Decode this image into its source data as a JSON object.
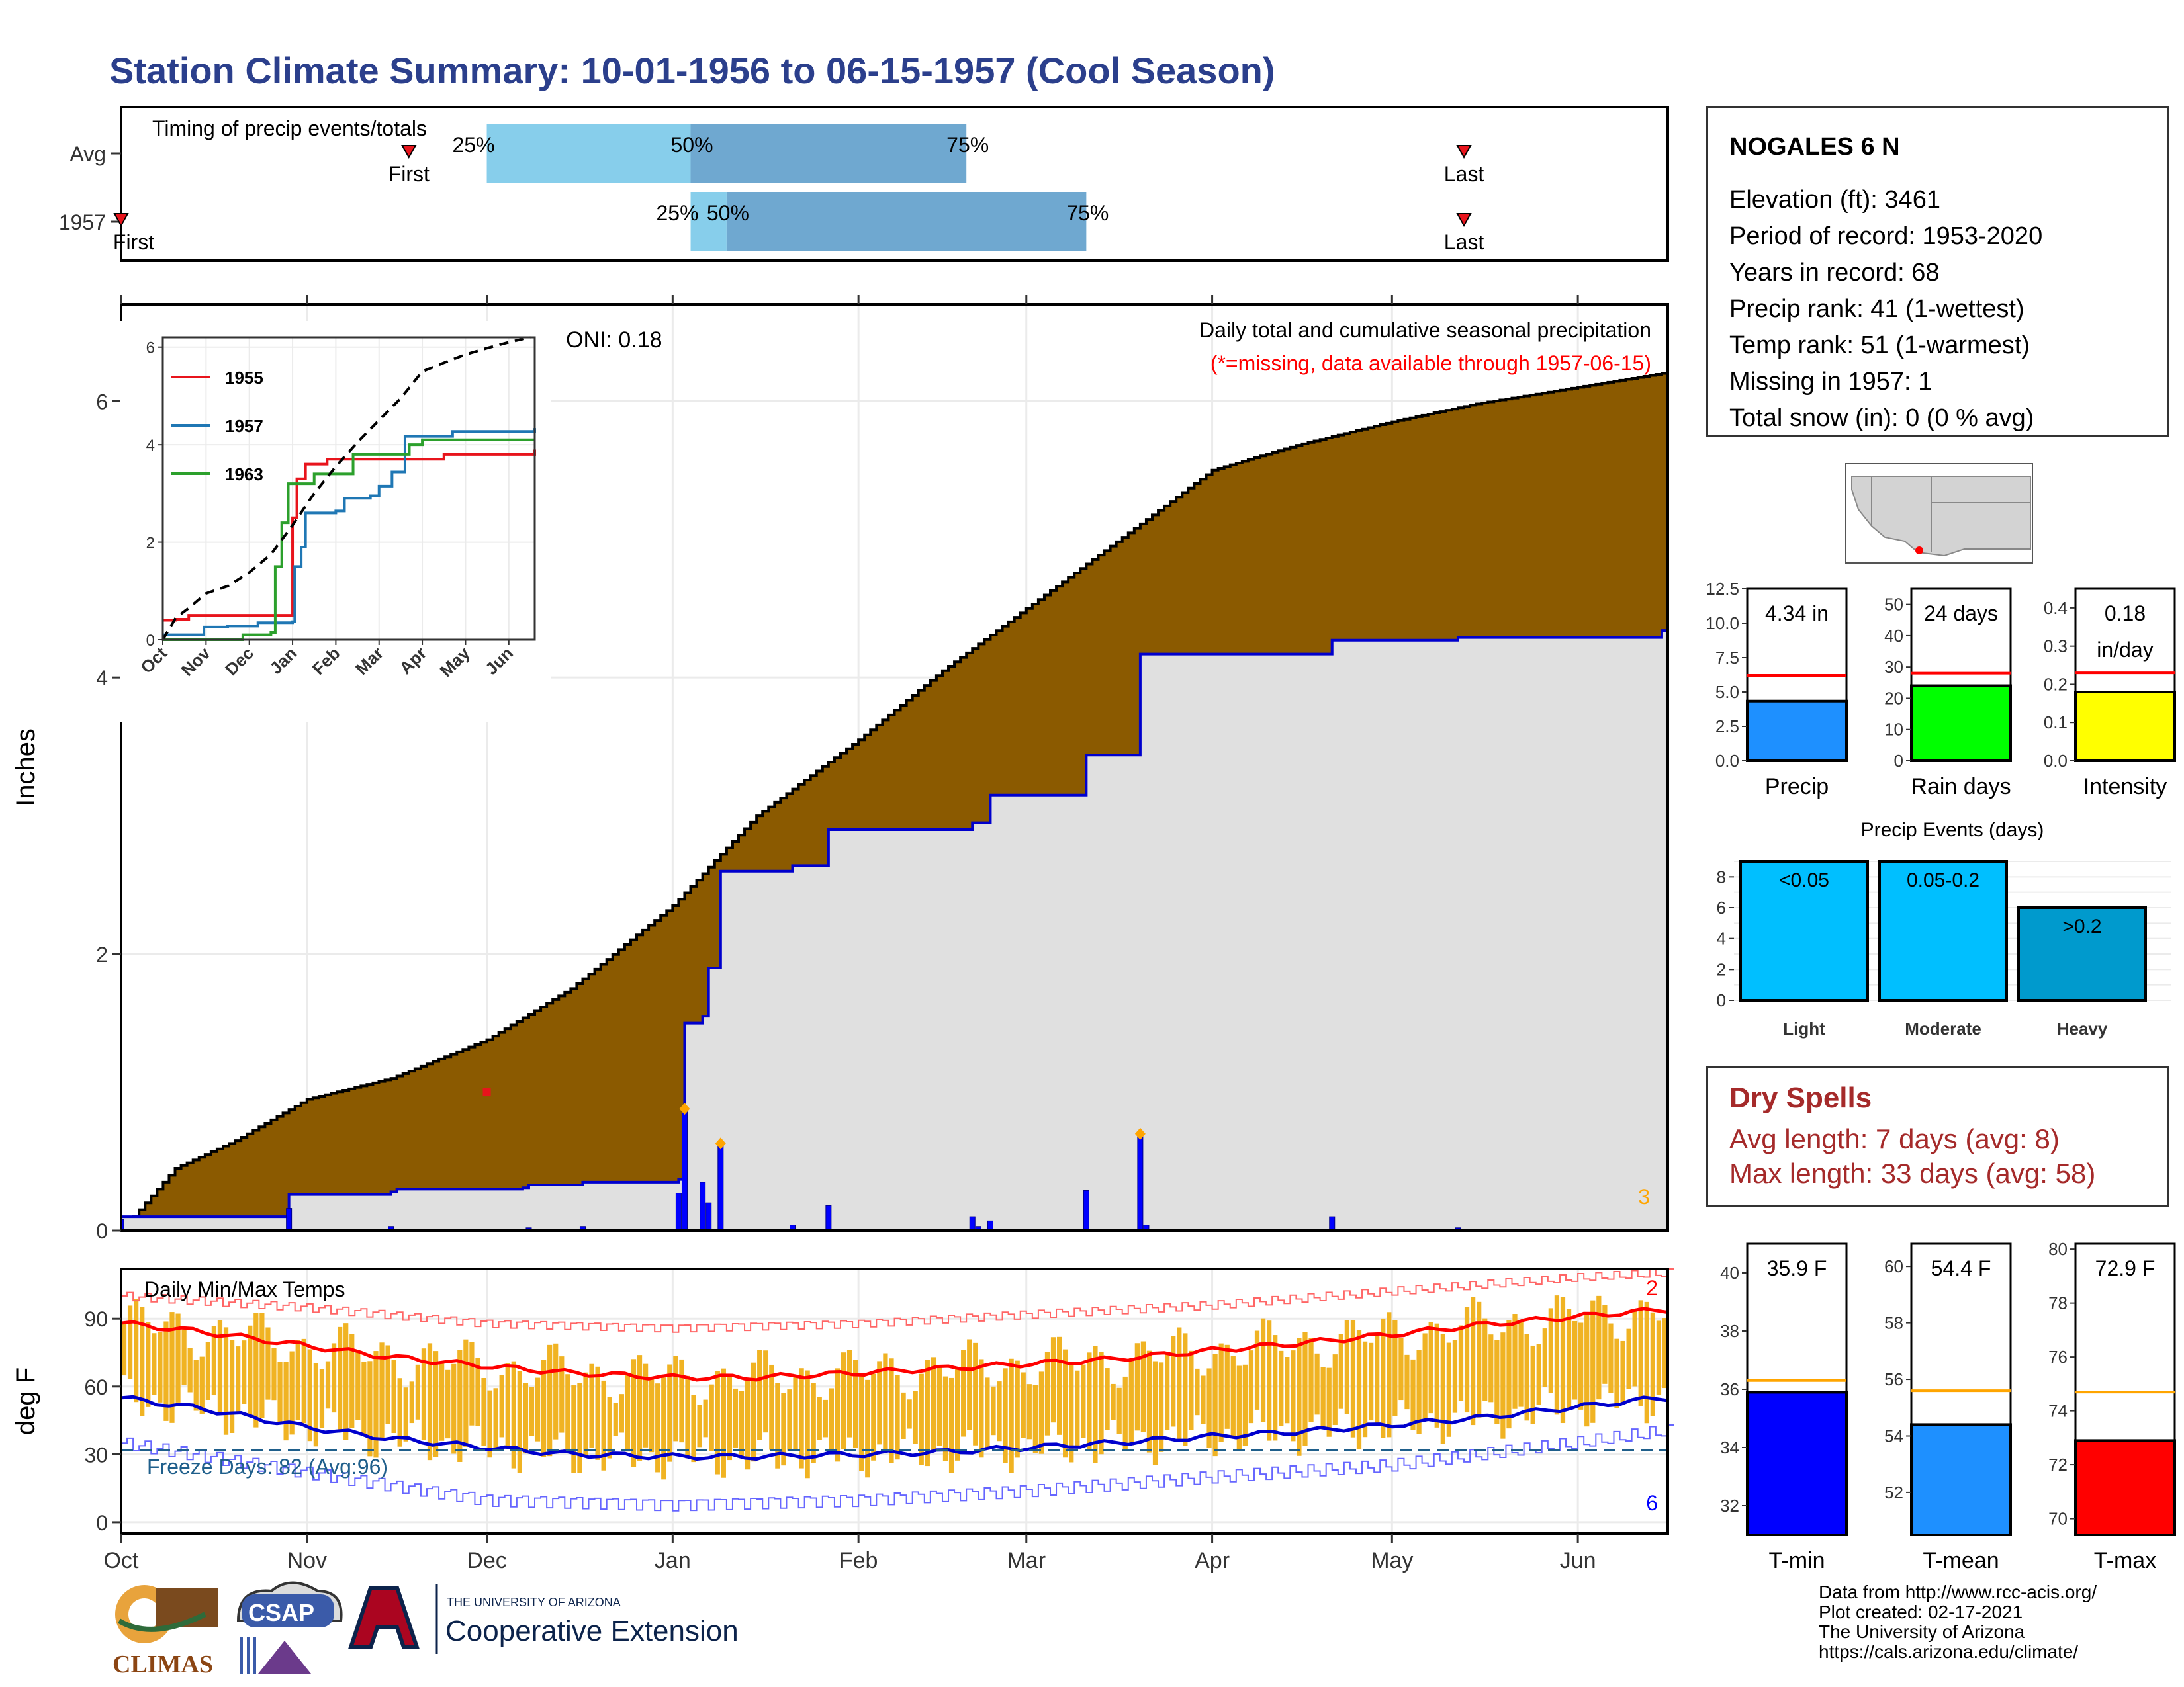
{
  "title": "Station Climate Summary: 10-01-1956 to 06-15-1957 (Cool Season)",
  "timing": {
    "label": "Timing of precip events/totals",
    "rows": [
      {
        "label": "Avg",
        "first_label": "First",
        "last_label": "Last",
        "first_date": "1956-11-18",
        "last_date": "1957-05-13",
        "p25": "1956-12-01",
        "p50": "1957-01-04",
        "p75": "1957-02-19"
      },
      {
        "label": "1957",
        "first_label": "First",
        "last_label": "Last",
        "first_date": "1956-10-01",
        "last_date": "1957-05-13",
        "p25": "1957-01-04",
        "p50": "1957-01-10",
        "p75": "1957-03-11"
      }
    ],
    "pct_labels": [
      "25%",
      "50%",
      "75%"
    ],
    "colors": {
      "band1": "#87ceeb",
      "band2": "#6fa8d0",
      "marker": "#e8141c"
    }
  },
  "station": {
    "name": "NOGALES 6 N",
    "lines": [
      "Elevation (ft): 3461",
      "Period of record: 1953-2020",
      "Years in record: 68",
      "Precip rank: 41 (1-wettest)",
      "Temp rank: 51 (1-warmest)",
      "Missing in 1957: 1",
      "Total snow (in): 0 (0 % avg)"
    ]
  },
  "chart_data": [
    {
      "id": "precip",
      "type": "area",
      "title": "Daily total and cumulative seasonal precipitation",
      "subtitle": "(*=missing, data available through 1957-06-15)",
      "ylabel": "Inches",
      "ylim": [
        0,
        6.7
      ],
      "yticks": [
        0,
        2,
        4,
        6
      ],
      "months": [
        "Oct",
        "Nov",
        "Dec",
        "Jan",
        "Feb",
        "Mar",
        "Apr",
        "May",
        "Jun"
      ],
      "month_starts": [
        "1956-10-01",
        "1956-11-01",
        "1956-12-01",
        "1957-01-01",
        "1957-02-01",
        "1957-03-01",
        "1957-04-01",
        "1957-05-01",
        "1957-06-01"
      ],
      "oni_label": "ONI: 0.18",
      "corner_count": "3",
      "average_cumulative": [
        [
          "1956-10-01",
          0.0
        ],
        [
          "1956-10-10",
          0.45
        ],
        [
          "1956-10-20",
          0.65
        ],
        [
          "1956-11-01",
          0.95
        ],
        [
          "1956-11-15",
          1.1
        ],
        [
          "1956-12-01",
          1.38
        ],
        [
          "1956-12-15",
          1.75
        ],
        [
          "1957-01-01",
          2.35
        ],
        [
          "1957-01-15",
          3.0
        ],
        [
          "1957-02-01",
          3.55
        ],
        [
          "1957-02-15",
          4.05
        ],
        [
          "1957-03-01",
          4.5
        ],
        [
          "1957-03-15",
          4.95
        ],
        [
          "1957-04-01",
          5.5
        ],
        [
          "1957-04-15",
          5.68
        ],
        [
          "1957-05-01",
          5.85
        ],
        [
          "1957-05-15",
          5.98
        ],
        [
          "1957-06-01",
          6.1
        ],
        [
          "1957-06-15",
          6.2
        ]
      ],
      "cumulative_1957": [
        [
          "1956-10-01",
          0.1
        ],
        [
          "1956-10-28",
          0.1
        ],
        [
          "1956-10-29",
          0.26
        ],
        [
          "1956-11-15",
          0.28
        ],
        [
          "1956-11-16",
          0.3
        ],
        [
          "1956-12-07",
          0.31
        ],
        [
          "1956-12-08",
          0.33
        ],
        [
          "1956-12-17",
          0.35
        ],
        [
          "1957-01-02",
          0.37
        ],
        [
          "1957-01-03",
          1.5
        ],
        [
          "1957-01-06",
          1.55
        ],
        [
          "1957-01-07",
          1.9
        ],
        [
          "1957-01-09",
          2.6
        ],
        [
          "1957-01-21",
          2.64
        ],
        [
          "1957-01-27",
          2.9
        ],
        [
          "1957-02-20",
          2.95
        ],
        [
          "1957-02-23",
          3.15
        ],
        [
          "1957-03-11",
          3.44
        ],
        [
          "1957-03-20",
          4.17
        ],
        [
          "1957-04-21",
          4.27
        ],
        [
          "1957-05-12",
          4.29
        ],
        [
          "1957-06-15",
          4.34
        ]
      ],
      "daily_bars": [
        [
          "1956-10-01",
          0.08
        ],
        [
          "1956-10-29",
          0.16
        ],
        [
          "1956-11-15",
          0.03
        ],
        [
          "1956-12-08",
          0.02
        ],
        [
          "1956-12-17",
          0.03
        ],
        [
          "1957-01-02",
          0.27
        ],
        [
          "1957-01-03",
          0.88
        ],
        [
          "1957-01-06",
          0.35
        ],
        [
          "1957-01-07",
          0.2
        ],
        [
          "1957-01-09",
          0.63
        ],
        [
          "1957-01-21",
          0.04
        ],
        [
          "1957-01-27",
          0.18
        ],
        [
          "1957-02-20",
          0.1
        ],
        [
          "1957-02-21",
          0.03
        ],
        [
          "1957-02-23",
          0.07
        ],
        [
          "1957-03-11",
          0.29
        ],
        [
          "1957-03-20",
          0.7
        ],
        [
          "1957-03-21",
          0.04
        ],
        [
          "1957-04-21",
          0.1
        ],
        [
          "1957-05-12",
          0.02
        ]
      ],
      "markers": [
        [
          "1957-01-03",
          0.88
        ],
        [
          "1957-01-09",
          0.63
        ],
        [
          "1957-03-20",
          0.7
        ]
      ],
      "missing_marker": [
        "1956-12-01",
        1.0
      ],
      "colors": {
        "average_fill": "#8b5a00",
        "season_fill": "#e0e0e0",
        "season_line": "#0000cd",
        "bars": "#0000ff",
        "marker": "#ffa500",
        "missing": "#e8141c"
      }
    },
    {
      "id": "inset",
      "type": "line",
      "months": [
        "Oct",
        "Nov",
        "Dec",
        "Jan",
        "Feb",
        "Mar",
        "Apr",
        "May",
        "Jun"
      ],
      "yticks": [
        0,
        2,
        4,
        6
      ],
      "ylim": [
        0,
        6.2
      ],
      "series": [
        {
          "name": "1955",
          "color": "#e8141c",
          "points": [
            [
              0,
              0.4
            ],
            [
              0.3,
              0.42
            ],
            [
              0.6,
              0.5
            ],
            [
              2.9,
              0.5
            ],
            [
              3.0,
              2.5
            ],
            [
              3.1,
              3.3
            ],
            [
              3.3,
              3.6
            ],
            [
              3.8,
              3.7
            ],
            [
              4.5,
              3.7
            ],
            [
              6.5,
              3.8
            ],
            [
              8.6,
              3.9
            ]
          ]
        },
        {
          "name": "1957",
          "color": "#1f77b4",
          "points": [
            [
              0,
              0.1
            ],
            [
              0.9,
              0.1
            ],
            [
              0.95,
              0.26
            ],
            [
              1.5,
              0.28
            ],
            [
              2.2,
              0.35
            ],
            [
              3.0,
              0.37
            ],
            [
              3.05,
              1.5
            ],
            [
              3.2,
              1.9
            ],
            [
              3.3,
              2.6
            ],
            [
              4.0,
              2.64
            ],
            [
              4.2,
              2.9
            ],
            [
              4.8,
              2.95
            ],
            [
              5.0,
              3.15
            ],
            [
              5.3,
              3.44
            ],
            [
              5.6,
              4.17
            ],
            [
              6.7,
              4.27
            ],
            [
              8.6,
              4.34
            ]
          ]
        },
        {
          "name": "1963",
          "color": "#2ca02c",
          "points": [
            [
              0,
              0.0
            ],
            [
              1.8,
              0.0
            ],
            [
              1.85,
              0.1
            ],
            [
              2.5,
              0.15
            ],
            [
              2.6,
              1.5
            ],
            [
              2.75,
              2.4
            ],
            [
              2.9,
              3.2
            ],
            [
              3.5,
              3.4
            ],
            [
              4.2,
              3.4
            ],
            [
              4.4,
              3.8
            ],
            [
              5.7,
              4.0
            ],
            [
              6.0,
              4.1
            ],
            [
              8.6,
              4.1
            ]
          ]
        },
        {
          "name": "avg",
          "color": "#000000",
          "dashed": true,
          "points": [
            [
              0,
              0.0
            ],
            [
              0.3,
              0.45
            ],
            [
              0.6,
              0.65
            ],
            [
              1.0,
              0.95
            ],
            [
              1.5,
              1.1
            ],
            [
              2.0,
              1.38
            ],
            [
              2.5,
              1.75
            ],
            [
              3.0,
              2.35
            ],
            [
              3.5,
              3.0
            ],
            [
              4.0,
              3.55
            ],
            [
              4.5,
              4.05
            ],
            [
              5.0,
              4.5
            ],
            [
              5.5,
              4.95
            ],
            [
              6.0,
              5.5
            ],
            [
              6.5,
              5.68
            ],
            [
              7.0,
              5.85
            ],
            [
              7.5,
              5.98
            ],
            [
              8.0,
              6.1
            ],
            [
              8.5,
              6.2
            ]
          ]
        }
      ],
      "legend": [
        "1955",
        "1957",
        "1963"
      ]
    },
    {
      "id": "temps",
      "type": "bar",
      "title": "Daily Min/Max Temps",
      "ylabel": "deg F",
      "ylim": [
        -5,
        112
      ],
      "yticks": [
        0,
        30,
        60,
        90
      ],
      "months": [
        "Oct",
        "Nov",
        "Dec",
        "Jan",
        "Feb",
        "Mar",
        "Apr",
        "May",
        "Jun"
      ],
      "freeze_label": "Freeze Days: 82 (Avg:96)",
      "freeze_line": 32,
      "top_count": "2",
      "bottom_count": "6",
      "avg_max": [
        [
          "1956-10-01",
          88
        ],
        [
          "1956-10-15",
          84
        ],
        [
          "1956-11-01",
          78
        ],
        [
          "1956-11-15",
          73
        ],
        [
          "1956-12-01",
          69
        ],
        [
          "1956-12-15",
          66
        ],
        [
          "1957-01-01",
          64
        ],
        [
          "1957-01-15",
          64
        ],
        [
          "1957-02-01",
          66
        ],
        [
          "1957-02-15",
          68
        ],
        [
          "1957-03-01",
          70
        ],
        [
          "1957-03-15",
          72
        ],
        [
          "1957-04-01",
          76
        ],
        [
          "1957-04-15",
          79
        ],
        [
          "1957-05-01",
          83
        ],
        [
          "1957-05-15",
          87
        ],
        [
          "1957-06-01",
          91
        ],
        [
          "1957-06-15",
          94
        ]
      ],
      "avg_min": [
        [
          "1956-10-01",
          55
        ],
        [
          "1956-10-15",
          50
        ],
        [
          "1956-11-01",
          42
        ],
        [
          "1956-11-15",
          37
        ],
        [
          "1956-12-01",
          33
        ],
        [
          "1956-12-15",
          30
        ],
        [
          "1957-01-01",
          29
        ],
        [
          "1957-01-15",
          29
        ],
        [
          "1957-02-01",
          30
        ],
        [
          "1957-02-15",
          31
        ],
        [
          "1957-03-01",
          33
        ],
        [
          "1957-03-15",
          35
        ],
        [
          "1957-04-01",
          38
        ],
        [
          "1957-04-15",
          40
        ],
        [
          "1957-05-01",
          43
        ],
        [
          "1957-05-15",
          46
        ],
        [
          "1957-06-01",
          51
        ],
        [
          "1957-06-15",
          55
        ]
      ],
      "record_max": [
        [
          "1956-10-01",
          100
        ],
        [
          "1956-11-01",
          95
        ],
        [
          "1956-12-01",
          88
        ],
        [
          "1957-01-01",
          86
        ],
        [
          "1957-02-01",
          88
        ],
        [
          "1957-03-01",
          92
        ],
        [
          "1957-04-01",
          96
        ],
        [
          "1957-05-01",
          102
        ],
        [
          "1957-06-01",
          108
        ],
        [
          "1957-06-15",
          110
        ]
      ],
      "record_min": [
        [
          "1956-10-01",
          35
        ],
        [
          "1956-11-01",
          22
        ],
        [
          "1956-12-01",
          10
        ],
        [
          "1957-01-01",
          8
        ],
        [
          "1957-02-01",
          10
        ],
        [
          "1957-03-01",
          14
        ],
        [
          "1957-04-01",
          20
        ],
        [
          "1957-05-01",
          25
        ],
        [
          "1957-06-01",
          35
        ],
        [
          "1957-06-15",
          40
        ]
      ],
      "colors": {
        "bars": "#f0b323",
        "avg_max": "#ff0000",
        "avg_min": "#0000cd",
        "record_max": "#ff6666",
        "record_min": "#6666ff",
        "freeze": "#1f5f8b"
      }
    },
    {
      "id": "precip-summary",
      "type": "bar",
      "panels": [
        {
          "category": "Precip",
          "value": 4.34,
          "avg": 6.2,
          "label": "4.34 in",
          "ylim": [
            0,
            12.5
          ],
          "yticks": [
            "0.0",
            "2.5",
            "5.0",
            "7.5",
            "10.0",
            "12.5"
          ],
          "color": "#1e90ff"
        },
        {
          "category": "Rain days",
          "value": 24,
          "avg": 28,
          "label": "24 days",
          "ylim": [
            0,
            55
          ],
          "yticks": [
            "0",
            "10",
            "20",
            "30",
            "40",
            "50"
          ],
          "color": "#00ff00"
        },
        {
          "category": "Intensity",
          "value": 0.18,
          "avg": 0.23,
          "label": "0.18\nin/day",
          "ylim": [
            0,
            0.45
          ],
          "yticks": [
            "0.0",
            "0.1",
            "0.2",
            "0.3",
            "0.4"
          ],
          "color": "#ffff00"
        }
      ],
      "avg_color": "#ff0000"
    },
    {
      "id": "events",
      "type": "bar",
      "title": "Precip Events (days)",
      "categories": [
        "Light",
        "Moderate",
        "Heavy"
      ],
      "bin_labels": [
        "<0.05",
        "0.05-0.2",
        ">0.2"
      ],
      "values": [
        9,
        9,
        6
      ],
      "ylim": [
        0,
        9
      ],
      "yticks": [
        "0",
        "2",
        "4",
        "6",
        "8"
      ],
      "colors": [
        "#00bfff",
        "#00bfff",
        "#009acd"
      ]
    },
    {
      "id": "temp-summary",
      "type": "bar",
      "panels": [
        {
          "category": "T-min",
          "value": 35.9,
          "avg": 36.3,
          "label": "35.9 F",
          "ylim": [
            31,
            41
          ],
          "yticks": [
            "32",
            "34",
            "36",
            "38",
            "40"
          ],
          "color": "#0000ff"
        },
        {
          "category": "T-mean",
          "value": 54.4,
          "avg": 55.6,
          "label": "54.4 F",
          "ylim": [
            50.5,
            60.8
          ],
          "yticks": [
            "52",
            "54",
            "56",
            "58",
            "60"
          ],
          "color": "#1e90ff"
        },
        {
          "category": "T-max",
          "value": 72.9,
          "avg": 74.7,
          "label": "72.9 F",
          "ylim": [
            69.4,
            80.2
          ],
          "yticks": [
            "70",
            "72",
            "74",
            "76",
            "78",
            "80"
          ],
          "color": "#ff0000"
        }
      ],
      "avg_color": "#ffa500"
    }
  ],
  "dry_spells": {
    "title": "Dry Spells",
    "avg": "Avg length: 7 days (avg: 8)",
    "max": "Max length: 33 days (avg: 58)"
  },
  "footer": {
    "lines": [
      "Data from http://www.rcc-acis.org/",
      "Plot created: 02-17-2021",
      "The University of Arizona",
      "https://cals.arizona.edu/climate/"
    ]
  },
  "logos": {
    "climas": "CLIMAS",
    "csap": "CSAP",
    "ua_small": "THE UNIVERSITY OF ARIZONA",
    "ua_main": "Cooperative Extension"
  }
}
